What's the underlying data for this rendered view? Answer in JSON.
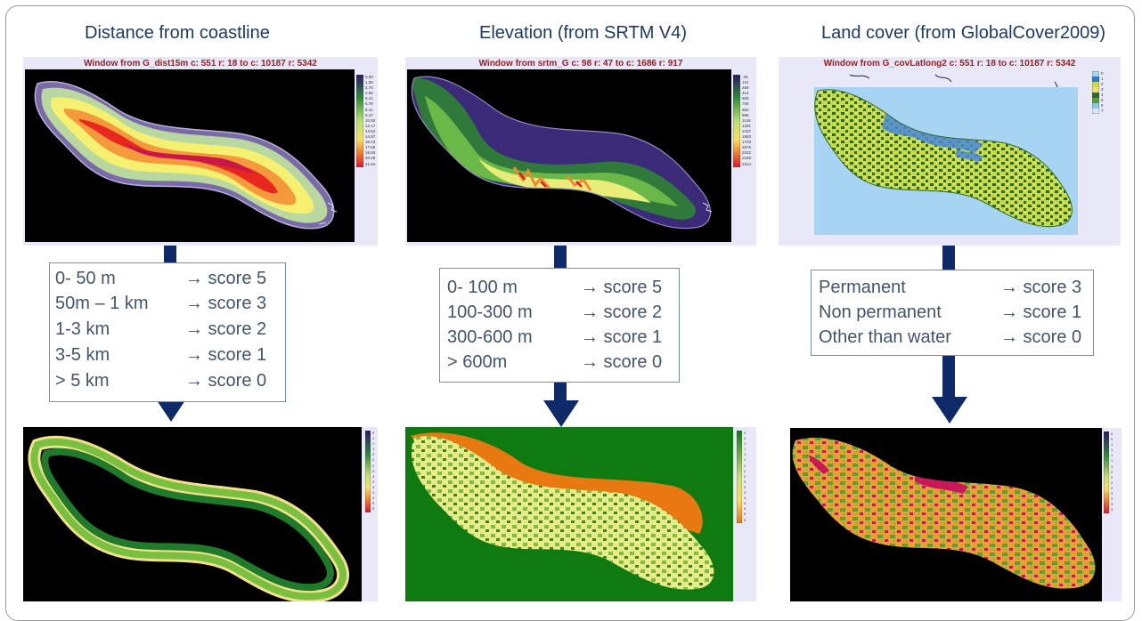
{
  "columns": [
    {
      "title": "Distance from coastline",
      "window_title": "Window from G_dist15m c: 551 r: 18 to c: 10187 r: 5342",
      "legend_top": [
        "0.00",
        "1.35",
        "2.70",
        "4.06",
        "5.41",
        "6.76",
        "8.11",
        "9.47",
        "10.82",
        "12.17",
        "13.52",
        "14.87",
        "16.23",
        "17.58",
        "18.93",
        "20.28",
        "21.64"
      ],
      "rules": [
        {
          "range": "0- 50 m",
          "score": "→ score 5"
        },
        {
          "range": "50m – 1 km",
          "score": "→ score 3"
        },
        {
          "range": "1-3 km",
          "score": "→ score 2"
        },
        {
          "range": "3-5 km",
          "score": "→ score 1"
        },
        {
          "range": "> 5 km",
          "score": "→ score 0"
        }
      ],
      "legend_bottom": [
        "0",
        "1",
        "1",
        "1",
        "2",
        "2",
        "2",
        "3",
        "3",
        "3",
        "4",
        "4",
        "4",
        "5",
        "5"
      ]
    },
    {
      "title": "Elevation (from SRTM V4)",
      "window_title": "Window from srtm_G c: 98 r: 47 to c: 1686 r: 917",
      "legend_top": [
        "-25",
        "121",
        "268",
        "414",
        "560",
        "706",
        "852",
        "998",
        "1145",
        "1291",
        "1437",
        "1583",
        "1729",
        "1875",
        "2022",
        "2168",
        "2314"
      ],
      "rules": [
        {
          "range": "0- 100 m",
          "score": "→ score 5"
        },
        {
          "range": "100-300 m",
          "score": "→ score 2"
        },
        {
          "range": "300-600 m",
          "score": "→ score 1"
        },
        {
          "range": "> 600m",
          "score": "→ score 0"
        }
      ],
      "legend_bottom": [
        "0",
        "0",
        "1",
        "1",
        "1",
        "1",
        "2",
        "2",
        "2",
        "3",
        "3",
        "3",
        "4",
        "4",
        "4",
        "5",
        "5"
      ]
    },
    {
      "title": "Land cover (from GlobalCover2009)",
      "window_title": "Window from G_covLatlong2 c: 551 r: 18 to c: 10187 r: 5342",
      "legend_top": [
        "0",
        "1",
        "2",
        "3",
        "4",
        "5",
        "6",
        "7"
      ],
      "rules": [
        {
          "range": "Permanent",
          "score": "→ score 3"
        },
        {
          "range": "Non permanent",
          "score": "→ score 1"
        },
        {
          "range": "Other than water",
          "score": "→ score 0"
        }
      ],
      "legend_bottom": [
        "0",
        "0",
        "1",
        "1",
        "1",
        "1",
        "1",
        "2",
        "2",
        "2",
        "2",
        "3",
        "3",
        "3",
        "3"
      ]
    }
  ],
  "colors": {
    "title_text": "#1d3a64",
    "window_title": "#a11d1d",
    "panel_bg": "#e8e8f8",
    "arrow": "#0e2a68",
    "rules_border": "#6f8fb8",
    "rules_text": "#44546b"
  }
}
